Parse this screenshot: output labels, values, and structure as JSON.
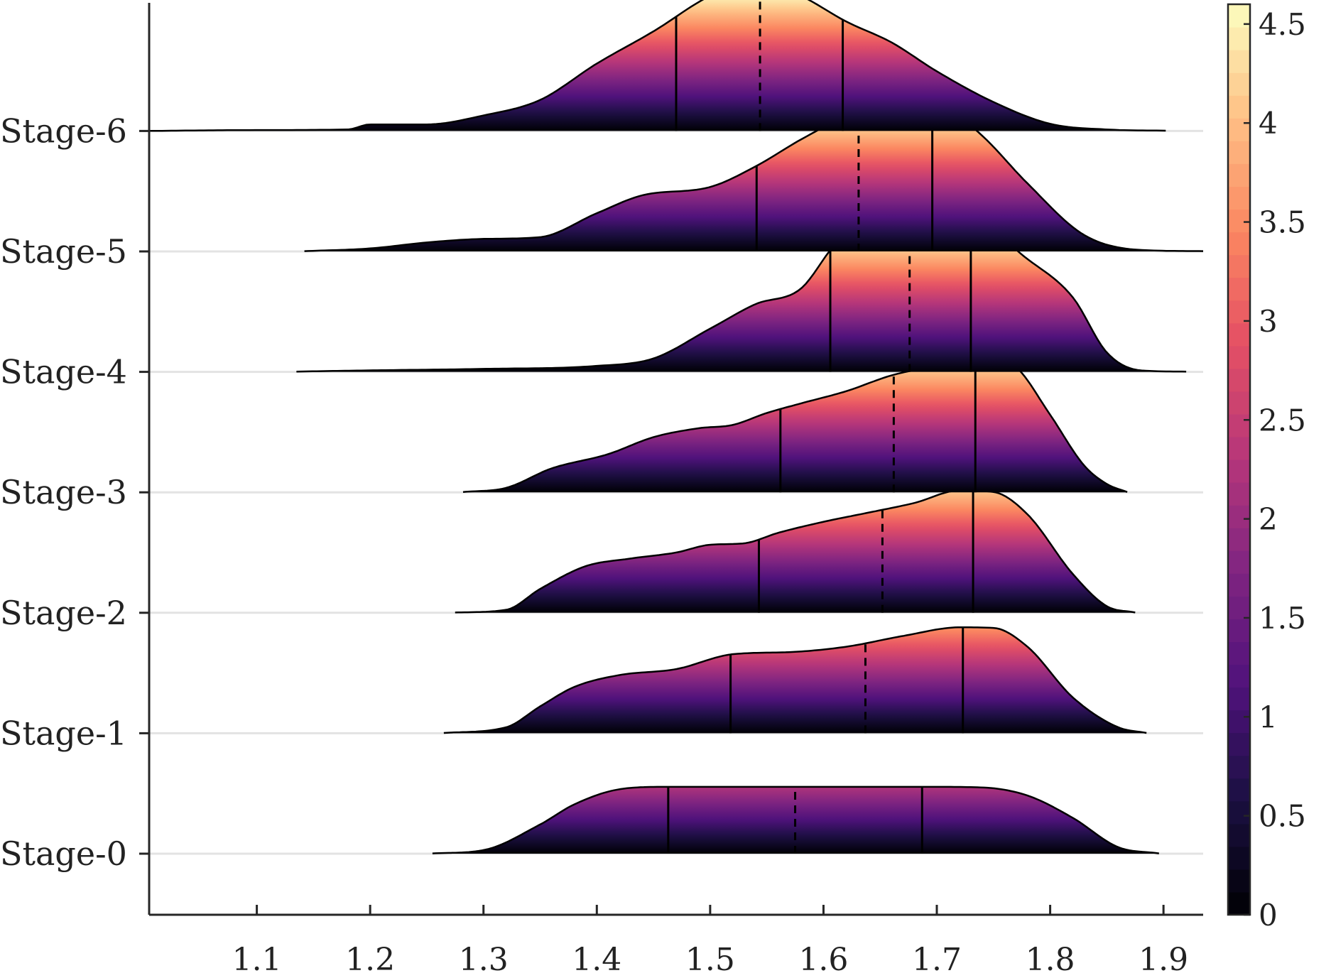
{
  "chart_data": {
    "type": "ridgeline",
    "title": "",
    "xlabel": "",
    "ylabel": "",
    "xlim": [
      1.005,
      1.935
    ],
    "x_ticks": [
      "1.1",
      "1.2",
      "1.3",
      "1.4",
      "1.5",
      "1.6",
      "1.7",
      "1.8",
      "1.9"
    ],
    "x_tick_values": [
      1.1,
      1.2,
      1.3,
      1.4,
      1.5,
      1.6,
      1.7,
      1.8,
      1.9
    ],
    "density_scale_max": 4.6,
    "grid": false,
    "series": [
      {
        "name": "Stage-0",
        "q25": 1.463,
        "median": 1.575,
        "q75": 1.687,
        "density": [
          [
            1.255,
            0.01
          ],
          [
            1.3,
            0.12
          ],
          [
            1.35,
            0.98
          ],
          [
            1.38,
            1.65
          ],
          [
            1.42,
            2.16
          ],
          [
            1.46,
            2.24
          ],
          [
            1.5,
            2.24
          ],
          [
            1.6,
            2.24
          ],
          [
            1.7,
            2.24
          ],
          [
            1.74,
            2.22
          ],
          [
            1.78,
            1.95
          ],
          [
            1.82,
            1.2
          ],
          [
            1.86,
            0.22
          ],
          [
            1.896,
            0.01
          ]
        ]
      },
      {
        "name": "Stage-1",
        "q25": 1.518,
        "median": 1.637,
        "q75": 1.723,
        "density": [
          [
            1.265,
            0.01
          ],
          [
            1.32,
            0.2
          ],
          [
            1.35,
            0.9
          ],
          [
            1.38,
            1.55
          ],
          [
            1.42,
            1.95
          ],
          [
            1.47,
            2.15
          ],
          [
            1.52,
            2.65
          ],
          [
            1.57,
            2.72
          ],
          [
            1.62,
            2.9
          ],
          [
            1.67,
            3.26
          ],
          [
            1.72,
            3.55
          ],
          [
            1.75,
            3.53
          ],
          [
            1.78,
            2.9
          ],
          [
            1.82,
            1.2
          ],
          [
            1.86,
            0.2
          ],
          [
            1.885,
            0.01
          ]
        ]
      },
      {
        "name": "Stage-2",
        "q25": 1.543,
        "median": 1.652,
        "q75": 1.732,
        "density": [
          [
            1.275,
            0.01
          ],
          [
            1.32,
            0.1
          ],
          [
            1.35,
            0.8
          ],
          [
            1.39,
            1.56
          ],
          [
            1.43,
            1.82
          ],
          [
            1.47,
            2.02
          ],
          [
            1.5,
            2.28
          ],
          [
            1.53,
            2.33
          ],
          [
            1.56,
            2.68
          ],
          [
            1.6,
            3.05
          ],
          [
            1.64,
            3.36
          ],
          [
            1.68,
            3.68
          ],
          [
            1.72,
            4.1
          ],
          [
            1.75,
            4.05
          ],
          [
            1.78,
            3.3
          ],
          [
            1.82,
            1.3
          ],
          [
            1.85,
            0.22
          ],
          [
            1.875,
            0.01
          ]
        ]
      },
      {
        "name": "Stage-3",
        "q25": 1.562,
        "median": 1.662,
        "q75": 1.734,
        "density": [
          [
            1.282,
            0.01
          ],
          [
            1.32,
            0.15
          ],
          [
            1.36,
            0.8
          ],
          [
            1.41,
            1.28
          ],
          [
            1.45,
            1.85
          ],
          [
            1.49,
            2.15
          ],
          [
            1.52,
            2.26
          ],
          [
            1.55,
            2.66
          ],
          [
            1.58,
            2.98
          ],
          [
            1.62,
            3.39
          ],
          [
            1.66,
            3.92
          ],
          [
            1.7,
            4.25
          ],
          [
            1.74,
            4.62
          ],
          [
            1.77,
            4.2
          ],
          [
            1.8,
            2.6
          ],
          [
            1.83,
            0.9
          ],
          [
            1.85,
            0.28
          ],
          [
            1.868,
            0.01
          ]
        ]
      },
      {
        "name": "Stage-4",
        "q25": 1.606,
        "median": 1.676,
        "q75": 1.73,
        "density": [
          [
            1.135,
            0.01
          ],
          [
            1.2,
            0.05
          ],
          [
            1.3,
            0.1
          ],
          [
            1.4,
            0.2
          ],
          [
            1.45,
            0.45
          ],
          [
            1.5,
            1.45
          ],
          [
            1.54,
            2.27
          ],
          [
            1.58,
            2.79
          ],
          [
            1.61,
            4.27
          ],
          [
            1.65,
            5.65
          ],
          [
            1.69,
            6.0
          ],
          [
            1.73,
            5.65
          ],
          [
            1.77,
            4.1
          ],
          [
            1.82,
            2.5
          ],
          [
            1.85,
            0.65
          ],
          [
            1.88,
            0.05
          ],
          [
            1.92,
            0.01
          ]
        ]
      },
      {
        "name": "Stage-5",
        "q25": 1.541,
        "median": 1.631,
        "q75": 1.696,
        "density": [
          [
            1.142,
            0.01
          ],
          [
            1.2,
            0.1
          ],
          [
            1.25,
            0.3
          ],
          [
            1.3,
            0.42
          ],
          [
            1.35,
            0.48
          ],
          [
            1.4,
            1.28
          ],
          [
            1.44,
            1.88
          ],
          [
            1.5,
            2.16
          ],
          [
            1.54,
            2.85
          ],
          [
            1.58,
            3.75
          ],
          [
            1.63,
            4.72
          ],
          [
            1.67,
            5.22
          ],
          [
            1.7,
            5.05
          ],
          [
            1.74,
            3.88
          ],
          [
            1.78,
            2.28
          ],
          [
            1.83,
            0.55
          ],
          [
            1.88,
            0.05
          ],
          [
            1.935,
            0.01
          ]
        ]
      },
      {
        "name": "Stage-6",
        "q25": 1.47,
        "median": 1.544,
        "q75": 1.617,
        "density": [
          [
            1.0,
            0.0
          ],
          [
            1.1,
            0.03
          ],
          [
            1.18,
            0.05
          ],
          [
            1.2,
            0.22
          ],
          [
            1.25,
            0.22
          ],
          [
            1.3,
            0.52
          ],
          [
            1.35,
            1.04
          ],
          [
            1.4,
            2.26
          ],
          [
            1.45,
            3.34
          ],
          [
            1.5,
            4.53
          ],
          [
            1.54,
            5.05
          ],
          [
            1.58,
            4.53
          ],
          [
            1.62,
            3.67
          ],
          [
            1.66,
            2.97
          ],
          [
            1.7,
            2.0
          ],
          [
            1.75,
            0.97
          ],
          [
            1.8,
            0.24
          ],
          [
            1.85,
            0.05
          ],
          [
            1.902,
            0.01
          ]
        ]
      }
    ],
    "colorbar": {
      "colormap": "magma",
      "min": 0,
      "max": 4.6,
      "ticks": [
        "0",
        "0.5",
        "1",
        "1.5",
        "2",
        "2.5",
        "3",
        "3.5",
        "4",
        "4.5"
      ],
      "tick_values": [
        0,
        0.5,
        1,
        1.5,
        2,
        2.5,
        3,
        3.5,
        4,
        4.5
      ]
    },
    "colors": {
      "axis": "#262626",
      "baseline": "#e3e3e3",
      "outline": "#000000"
    }
  }
}
